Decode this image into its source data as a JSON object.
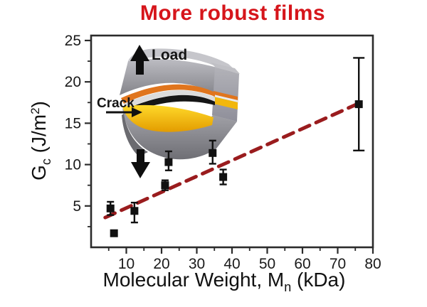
{
  "title": {
    "text": "More robust films",
    "color": "#d6151b"
  },
  "axes": {
    "xlabel": {
      "pre": "Molecular Weight, M",
      "sub": "n",
      "post": " (kDa)"
    },
    "ylabel": {
      "pre": "G",
      "sub": "c",
      "mid": " (J/m",
      "sup": "2",
      "post": ")"
    }
  },
  "inset": {
    "load_label": "Load",
    "crack_label": "Crack"
  },
  "chart_data": {
    "type": "scatter",
    "title": "More robust films",
    "xlabel": "Molecular Weight, Mn (kDa)",
    "ylabel": "Gc (J/m^2)",
    "xlim": [
      0,
      80
    ],
    "ylim": [
      0,
      25.6
    ],
    "x_ticks": [
      10,
      20,
      30,
      40,
      50,
      60,
      70,
      80
    ],
    "y_ticks": [
      5,
      10,
      15,
      20,
      25
    ],
    "x_minor_ticks": [
      5,
      15,
      25,
      35,
      45,
      55,
      65,
      75
    ],
    "y_minor_ticks": [
      2.5,
      7.5,
      12.5,
      17.5,
      22.5
    ],
    "grid": false,
    "legend": "none",
    "marker_color": "#111111",
    "frame_color": "#2b2b2b",
    "tick_label_color": "#1a1a1a",
    "series": [
      {
        "name": "fracture-energy-vs-molecular-weight",
        "marker": "square",
        "points": [
          {
            "x": 5.5,
            "y": 4.7,
            "err_up": 0.8,
            "err_down": 0.8
          },
          {
            "x": 6.5,
            "y": 1.7,
            "err_up": 0,
            "err_down": 0
          },
          {
            "x": 12.3,
            "y": 4.4,
            "err_up": 1.0,
            "err_down": 1.4
          },
          {
            "x": 21,
            "y": 7.5,
            "err_up": 0.6,
            "err_down": 0.6
          },
          {
            "x": 22,
            "y": 10.3,
            "err_up": 1.3,
            "err_down": 1.0
          },
          {
            "x": 34.5,
            "y": 11.4,
            "err_up": 1.5,
            "err_down": 1.3
          },
          {
            "x": 37.5,
            "y": 8.5,
            "err_up": 0.9,
            "err_down": 0.9
          },
          {
            "x": 76,
            "y": 17.3,
            "err_up": 5.6,
            "err_down": 5.6
          }
        ]
      }
    ],
    "trend_line": {
      "x1": 4,
      "y1": 3.6,
      "x2": 77,
      "y2": 17.6,
      "style": "dashed",
      "color": "#9a1c1e"
    }
  }
}
